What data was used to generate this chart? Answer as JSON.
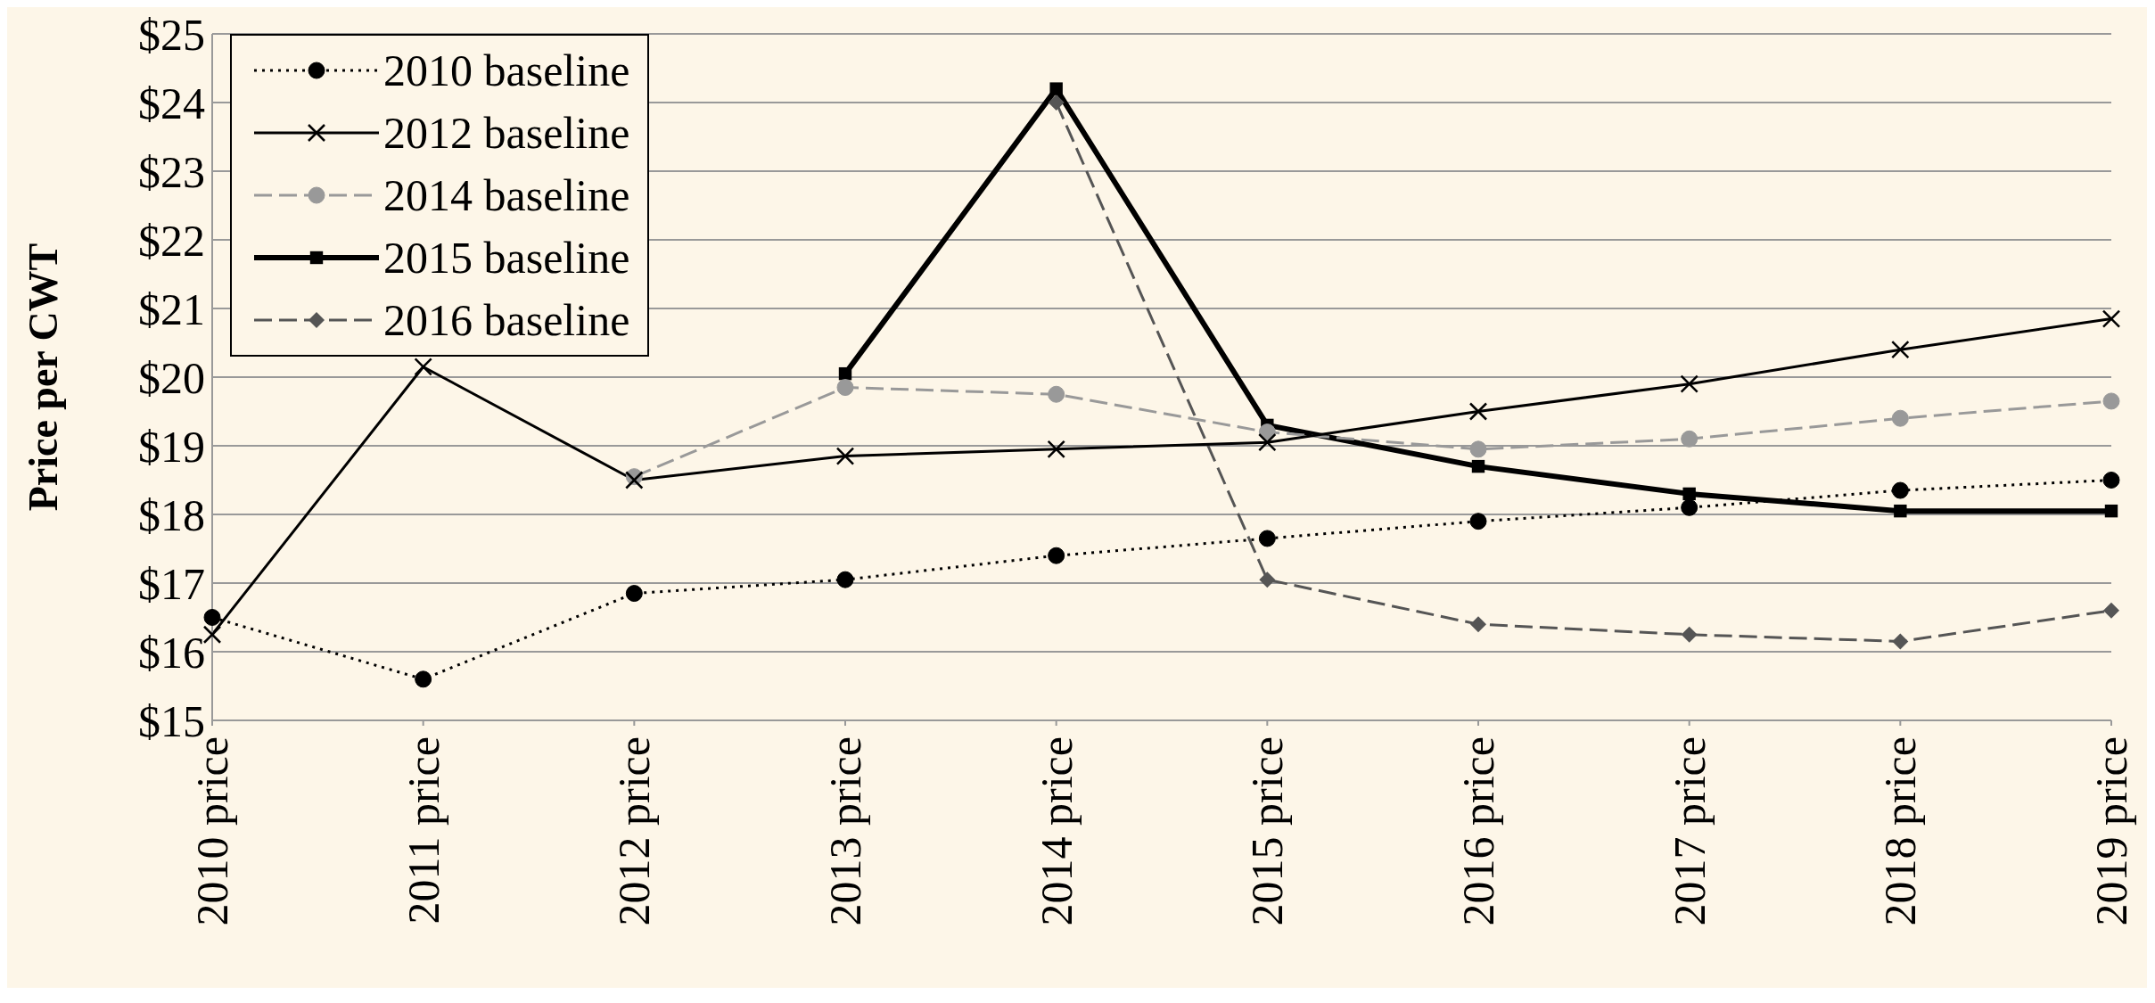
{
  "chart_data": {
    "type": "line",
    "ylabel": "Price per CWT",
    "categories": [
      "2010 price",
      "2011 price",
      "2012 price",
      "2013 price",
      "2014 price",
      "2015 price",
      "2016 price",
      "2017 price",
      "2018 price",
      "2019 price"
    ],
    "series": [
      {
        "name": "2010 baseline",
        "color": "#000000",
        "marker": "circle",
        "line_style": "dotted",
        "values": [
          16.5,
          15.6,
          16.85,
          17.05,
          17.4,
          17.65,
          17.9,
          18.1,
          18.35,
          18.5
        ]
      },
      {
        "name": "2012 baseline",
        "color": "#000000",
        "marker": "cross",
        "line_style": "solid",
        "values": [
          16.25,
          20.15,
          18.5,
          18.85,
          18.95,
          19.05,
          19.5,
          19.9,
          20.4,
          20.85
        ]
      },
      {
        "name": "2014 baseline",
        "color": "#999999",
        "marker": "circle",
        "line_style": "dashed",
        "values": [
          null,
          null,
          18.55,
          19.85,
          19.75,
          19.2,
          18.95,
          19.1,
          19.4,
          19.65
        ]
      },
      {
        "name": "2015 baseline",
        "color": "#000000",
        "marker": "square",
        "line_style": "solid",
        "values": [
          null,
          null,
          null,
          20.05,
          24.2,
          19.3,
          18.7,
          18.3,
          18.05,
          18.05
        ]
      },
      {
        "name": "2016 baseline",
        "color": "#555555",
        "marker": "diamond",
        "line_style": "dashed",
        "values": [
          null,
          null,
          null,
          null,
          24.0,
          17.05,
          16.4,
          16.25,
          16.15,
          16.6
        ]
      }
    ],
    "ylim": [
      15,
      25
    ],
    "yticks": [
      {
        "value": 15,
        "label": "$15"
      },
      {
        "value": 16,
        "label": "$16"
      },
      {
        "value": 17,
        "label": "$17"
      },
      {
        "value": 18,
        "label": "$18"
      },
      {
        "value": 19,
        "label": "$19"
      },
      {
        "value": 20,
        "label": "$20"
      },
      {
        "value": 21,
        "label": "$21"
      },
      {
        "value": 22,
        "label": "$22"
      },
      {
        "value": 23,
        "label": "$23"
      },
      {
        "value": 24,
        "label": "$24"
      },
      {
        "value": 25,
        "label": "$25"
      }
    ],
    "grid": "y",
    "legend": "top left"
  }
}
